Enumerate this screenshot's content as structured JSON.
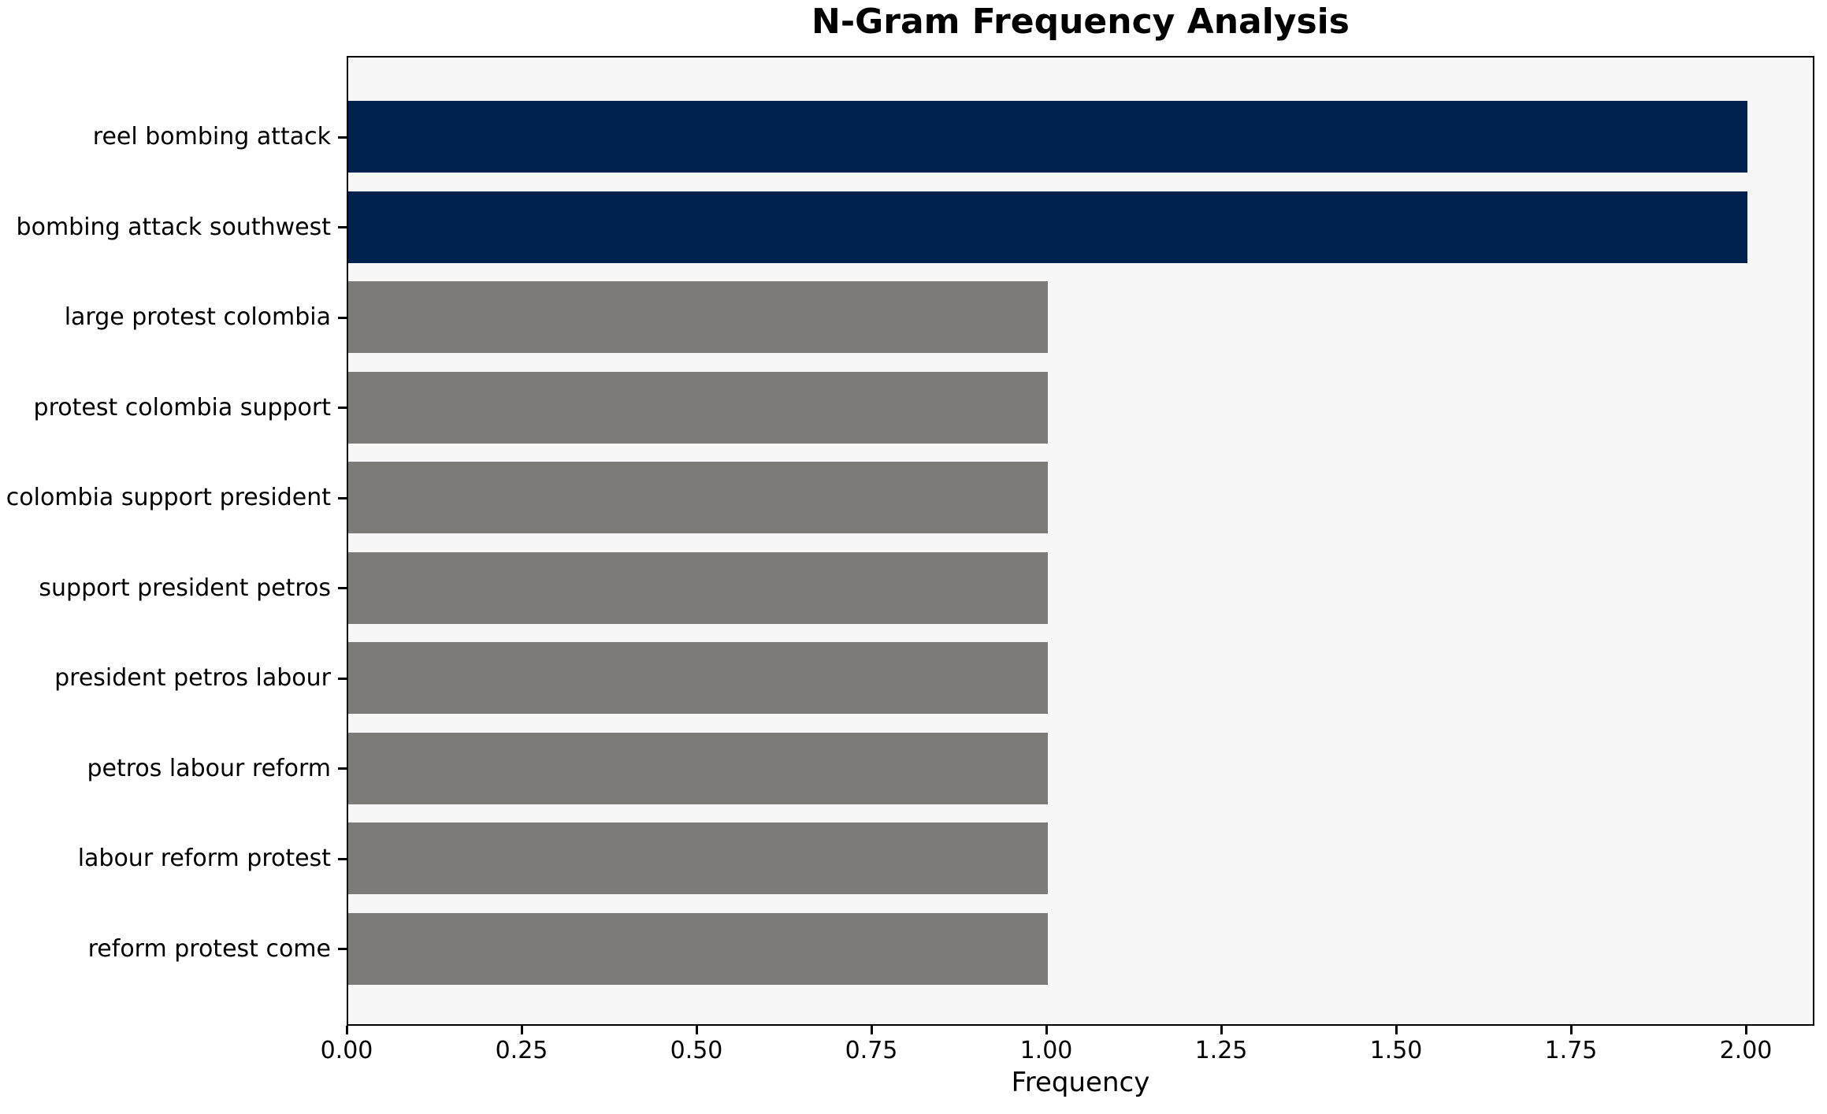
{
  "chart_data": {
    "type": "bar",
    "orientation": "horizontal",
    "title": "N-Gram Frequency Analysis",
    "xlabel": "Frequency",
    "ylabel": "",
    "categories": [
      "reel bombing attack",
      "bombing attack southwest",
      "large protest colombia",
      "protest colombia support",
      "colombia support president",
      "support president petros",
      "president petros labour",
      "petros labour reform",
      "labour reform protest",
      "reform protest come"
    ],
    "values": [
      2,
      2,
      1,
      1,
      1,
      1,
      1,
      1,
      1,
      1
    ],
    "bar_colors": [
      "#01224e",
      "#01224e",
      "#7c7b77",
      "#7c7b77",
      "#7c7b77",
      "#7c7b77",
      "#7c7b77",
      "#7c7b77",
      "#7c7b77",
      "#7c7b77"
    ],
    "xlim": [
      0,
      2.1
    ],
    "x_tick_values": [
      0,
      0.25,
      0.5,
      0.75,
      1,
      1.25,
      1.5,
      1.75,
      2
    ],
    "x_tick_labels": [
      "0.00",
      "0.25",
      "0.50",
      "0.75",
      "1.00",
      "1.25",
      "1.50",
      "1.75",
      "2.00"
    ],
    "grid": false,
    "legend": "none"
  },
  "colors": {
    "highlight_navy": "#01224e",
    "bar_gray": "#7c7b77",
    "plot_background": "#f8f7f7",
    "page_background": "#ffffff",
    "axis": "#000000"
  }
}
